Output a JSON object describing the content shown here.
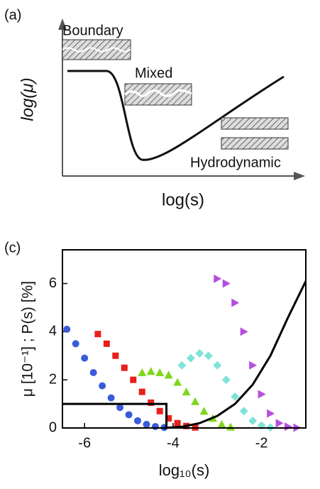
{
  "panel_a": {
    "label": "(a)",
    "regimes": [
      "Boundary",
      "Mixed",
      "Hydrodynamic"
    ],
    "ylabel": "log(μ)",
    "xlabel": "log(s)"
  },
  "chart_data": {
    "type": "scatter",
    "label": "(c)",
    "xlabel": "log₁₀(s)",
    "ylabel": "μ [10⁻¹] ; P(s) [%]",
    "xlim": [
      -6.5,
      -1
    ],
    "ylim": [
      0,
      7.4
    ],
    "xticks": [
      -6,
      -4,
      -2
    ],
    "yticks": [
      0,
      2,
      4,
      6
    ],
    "series": [
      {
        "color": "#3a5bd9",
        "marker": "circle",
        "x": [
          -6.4,
          -6.2,
          -6.0,
          -5.8,
          -5.6,
          -5.4,
          -5.2,
          -5.0,
          -4.8,
          -4.6,
          -4.4,
          -4.2
        ],
        "values": [
          4.1,
          3.5,
          2.9,
          2.3,
          1.75,
          1.25,
          0.85,
          0.55,
          0.3,
          0.15,
          0.06,
          0.02
        ]
      },
      {
        "color": "#e8201c",
        "marker": "square",
        "x": [
          -5.7,
          -5.5,
          -5.3,
          -5.1,
          -4.9,
          -4.7,
          -4.5,
          -4.3,
          -4.1,
          -3.9,
          -3.7,
          -3.5
        ],
        "values": [
          3.9,
          3.5,
          3.0,
          2.5,
          2.0,
          1.5,
          1.05,
          0.7,
          0.4,
          0.2,
          0.08,
          0.02
        ]
      },
      {
        "color": "#7fd61c",
        "marker": "triangle",
        "x": [
          -4.7,
          -4.5,
          -4.3,
          -4.1,
          -3.9,
          -3.7,
          -3.5,
          -3.3,
          -3.1,
          -2.9,
          -2.7
        ],
        "values": [
          2.3,
          2.35,
          2.3,
          2.2,
          1.9,
          1.5,
          1.1,
          0.7,
          0.4,
          0.15,
          0.04
        ]
      },
      {
        "color": "#7fe3d8",
        "marker": "diamond",
        "x": [
          -3.8,
          -3.6,
          -3.4,
          -3.2,
          -3.0,
          -2.8,
          -2.6,
          -2.4,
          -2.2,
          -2.0,
          -1.8
        ],
        "values": [
          2.6,
          2.9,
          3.1,
          3.0,
          2.6,
          2.0,
          1.3,
          0.7,
          0.3,
          0.1,
          0.02
        ]
      },
      {
        "color": "#b54ee0",
        "marker": "triangle-right",
        "x": [
          -3.0,
          -2.8,
          -2.6,
          -2.4,
          -2.2,
          -2.0,
          -1.8,
          -1.6,
          -1.4,
          -1.2
        ],
        "values": [
          6.2,
          6.0,
          5.2,
          4.0,
          2.6,
          1.4,
          0.6,
          0.2,
          0.05,
          0.01
        ]
      },
      {
        "color": "#000000",
        "marker": "line",
        "x": [
          -4.2,
          -3.8,
          -3.4,
          -3.0,
          -2.6,
          -2.2,
          -1.8,
          -1.4,
          -1.0
        ],
        "values": [
          0,
          0.05,
          0.2,
          0.5,
          1.0,
          1.8,
          3.0,
          4.6,
          6.1
        ]
      },
      {
        "color": "#000000",
        "marker": "line",
        "x": [
          -6.5,
          -4.15,
          -4.15
        ],
        "values": [
          1,
          1,
          0
        ]
      }
    ]
  }
}
